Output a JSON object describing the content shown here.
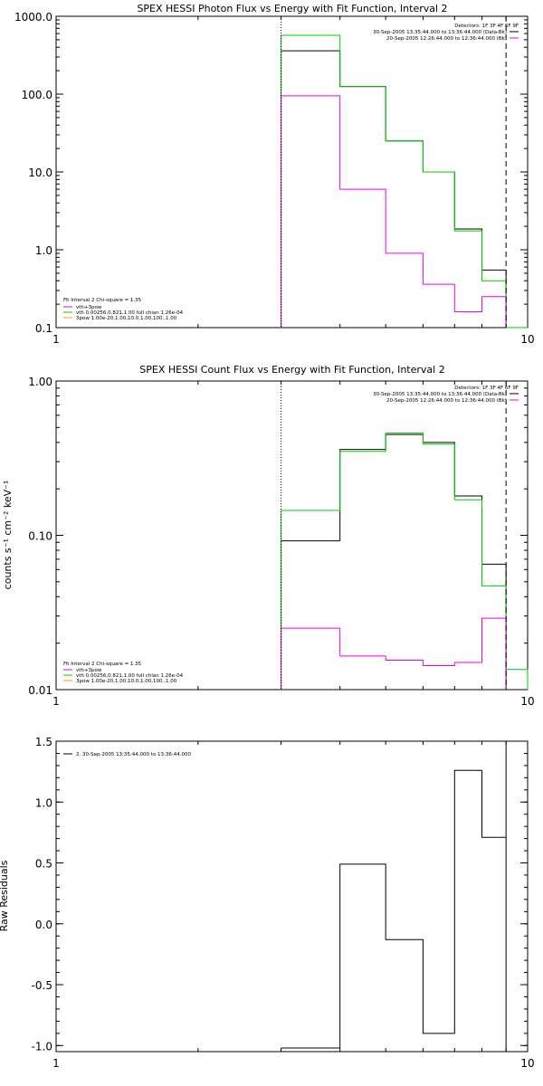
{
  "chart_data": [
    {
      "type": "line",
      "step": true,
      "title": "SPEX HESSI Photon Flux vs Energy with Fit Function, Interval 2",
      "xlabel": "",
      "ylabel": "",
      "xscale": "log",
      "yscale": "log",
      "xlim": [
        1,
        10
      ],
      "ylim": [
        0.1,
        1000
      ],
      "xticks": [
        {
          "v": 1,
          "label": "1"
        },
        {
          "v": 10,
          "label": "10"
        }
      ],
      "yticks": [
        {
          "v": 0.1,
          "label": "0.1"
        },
        {
          "v": 1,
          "label": "1.0"
        },
        {
          "v": 10,
          "label": "10.0"
        },
        {
          "v": 100,
          "label": "100.0"
        },
        {
          "v": 1000,
          "label": "1000.0"
        }
      ],
      "vlines": [
        {
          "x": 3.0,
          "style": "dotted",
          "color": "#000000"
        },
        {
          "x": 9.0,
          "style": "dashed",
          "color": "#000000"
        }
      ],
      "edges": [
        3.0,
        4.0,
        5.0,
        6.0,
        7.0,
        8.0,
        9.0,
        10.0
      ],
      "series": [
        {
          "name": "",
          "color": "#000000",
          "values": [
            360,
            125,
            25,
            10,
            1.85,
            0.55,
            null
          ]
        },
        {
          "name": "",
          "color": "#00cc00",
          "values": [
            570,
            125,
            25,
            10,
            1.75,
            0.4,
            0.1
          ]
        },
        {
          "name": "",
          "color": "#ee00ee",
          "values": [
            95,
            6,
            0.9,
            0.36,
            0.16,
            0.25,
            null
          ]
        }
      ],
      "info": {
        "detectors": "Detectors: 1F 3F 4F 6F 9F",
        "entries": [
          {
            "text": "30-Sep-2005 13:35:44.000 to 13:36:44.000 (Data-Bk)",
            "color": "#000000"
          },
          {
            "text": "20-Sep-2005 12:26:44.000 to 12:36:44.000 (Bk)",
            "color": "#ee00ee"
          }
        ]
      },
      "legend": {
        "position": "bottom-left",
        "title": "Fit Interval 2   Chi-square = 1.35",
        "entries": [
          {
            "text": "vth+3pow",
            "color": "#ee00ee"
          },
          {
            "text": "vth 0.00256,0.821,1.00   full chian 1.26e-04",
            "color": "#00cc00"
          },
          {
            "text": "3pow 1.00e-20,1.00,10.0,1.00,100.,1.00",
            "color": "#ffa500"
          }
        ]
      }
    },
    {
      "type": "line",
      "step": true,
      "title": "SPEX HESSI Count Flux vs Energy with Fit Function, Interval 2",
      "xlabel": "",
      "ylabel": "counts s⁻¹ cm⁻² keV⁻¹",
      "xscale": "log",
      "yscale": "log",
      "xlim": [
        1,
        10
      ],
      "ylim": [
        0.01,
        1
      ],
      "xticks": [
        {
          "v": 1,
          "label": "1"
        },
        {
          "v": 10,
          "label": "10"
        }
      ],
      "yticks": [
        {
          "v": 0.01,
          "label": "0.01"
        },
        {
          "v": 0.1,
          "label": "0.10"
        },
        {
          "v": 1,
          "label": "1.00"
        }
      ],
      "vlines": [
        {
          "x": 3.0,
          "style": "dotted",
          "color": "#000000"
        },
        {
          "x": 9.0,
          "style": "dashed",
          "color": "#000000"
        }
      ],
      "edges": [
        3.0,
        4.0,
        5.0,
        6.0,
        7.0,
        8.0,
        9.0,
        10.0
      ],
      "series": [
        {
          "name": "",
          "color": "#000000",
          "values": [
            0.092,
            0.36,
            0.45,
            0.4,
            0.18,
            0.065,
            null
          ]
        },
        {
          "name": "",
          "color": "#00cc00",
          "values": [
            0.145,
            0.35,
            0.46,
            0.39,
            0.17,
            0.047,
            0.0135
          ]
        },
        {
          "name": "",
          "color": "#ee00ee",
          "values": [
            0.025,
            0.0165,
            0.0155,
            0.0143,
            0.015,
            0.029,
            null
          ]
        }
      ],
      "info": {
        "detectors": "Detectors: 1F 3F 4F 6F 9F",
        "entries": [
          {
            "text": "30-Sep-2005 13:35:44.000 to 13:36:44.000 (Data-Bk)",
            "color": "#000000"
          },
          {
            "text": "20-Sep-2005 12:26:44.000 to 12:36:44.000 (Bk)",
            "color": "#ee00ee"
          }
        ]
      },
      "legend": {
        "position": "bottom-left",
        "title": "Fit Interval 2   Chi-square = 1.35",
        "entries": [
          {
            "text": "vth+3pow",
            "color": "#ee00ee"
          },
          {
            "text": "vth 0.00256,0.821,1.00   full chian 1.26e-04",
            "color": "#00cc00"
          },
          {
            "text": "3pow 1.00e-20,1.00,10.0,1.00,100.,1.00",
            "color": "#ffa500"
          }
        ]
      }
    },
    {
      "type": "line",
      "step": true,
      "title": "",
      "xlabel": "",
      "ylabel": "Raw Residuals",
      "xscale": "log",
      "yscale": "linear",
      "xlim": [
        1,
        10
      ],
      "ylim": [
        -1.05,
        1.5
      ],
      "xticks": [
        {
          "v": 1,
          "label": "1"
        },
        {
          "v": 10,
          "label": "10"
        }
      ],
      "yticks": [
        {
          "v": -1.0,
          "label": "-1.0"
        },
        {
          "v": -0.5,
          "label": "-0.5"
        },
        {
          "v": 0.0,
          "label": "0.0"
        },
        {
          "v": 0.5,
          "label": "0.5"
        },
        {
          "v": 1.0,
          "label": "1.0"
        },
        {
          "v": 1.5,
          "label": "1.5"
        }
      ],
      "vlines": [
        {
          "x": 9.0,
          "style": "solid",
          "color": "#000000"
        }
      ],
      "edges": [
        3.0,
        4.0,
        5.0,
        6.0,
        7.0,
        8.0,
        9.0
      ],
      "series": [
        {
          "name": "",
          "color": "#000000",
          "values": [
            -1.02,
            0.49,
            -0.13,
            -0.9,
            1.26,
            0.71
          ]
        }
      ],
      "legend": {
        "position": "top-left",
        "entries": [
          {
            "text": "2. 30-Sep-2005 13:35:44.000 to 13:36:44.000",
            "color": "#000000"
          }
        ]
      }
    }
  ]
}
